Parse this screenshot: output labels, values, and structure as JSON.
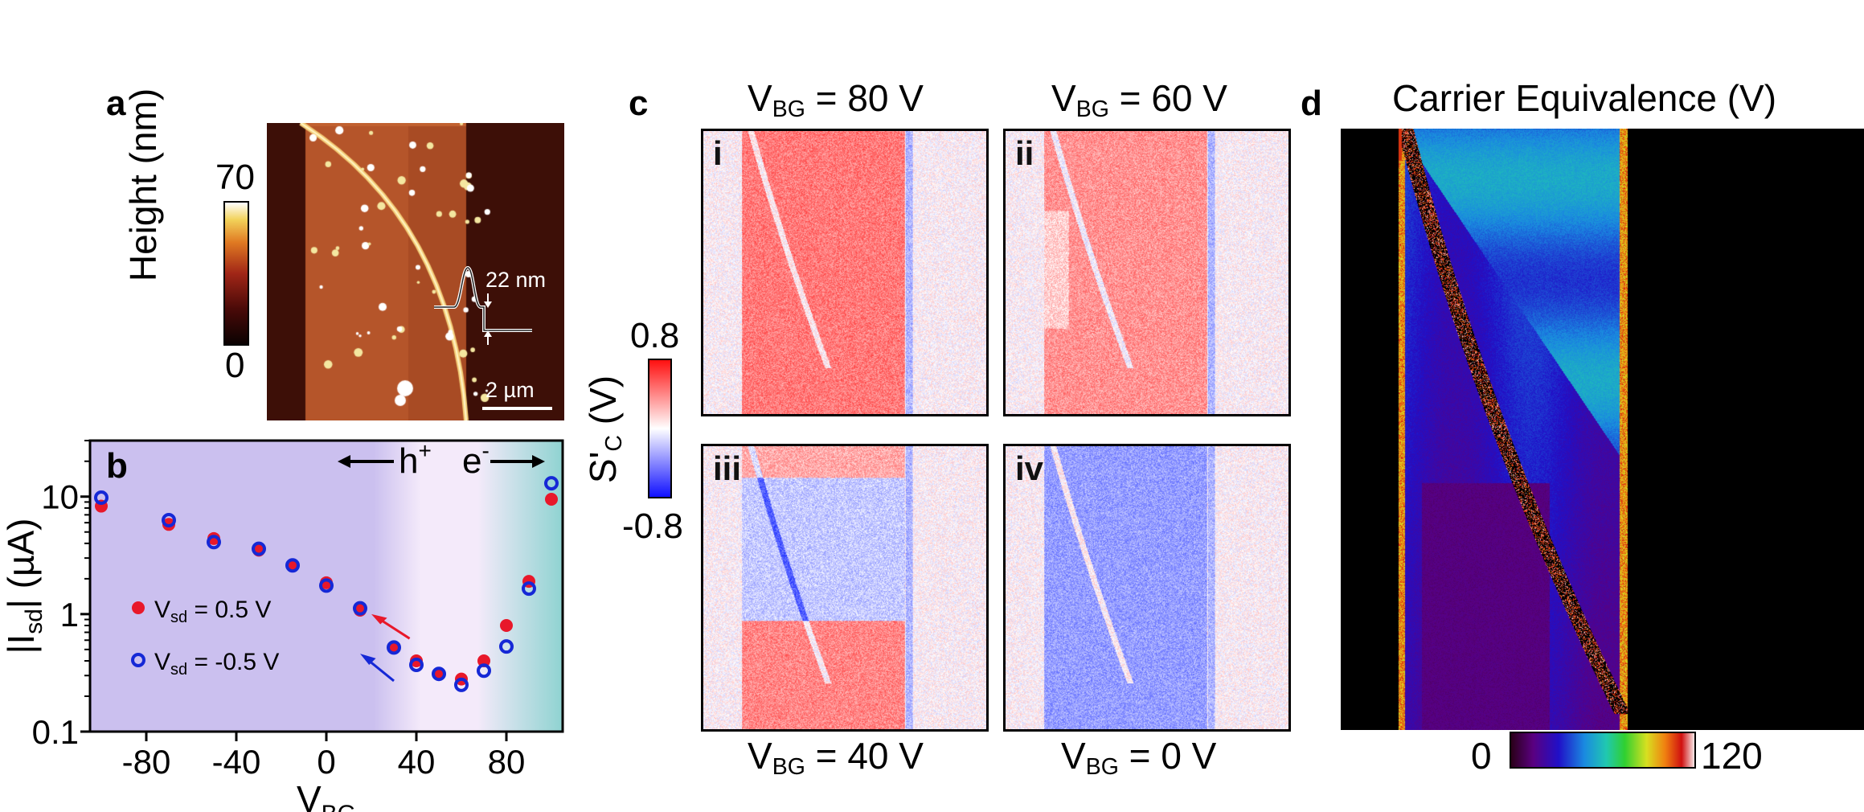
{
  "panel_a": {
    "letter": "a",
    "colorbar_label": "Height (nm)",
    "colorbar_max": "70",
    "colorbar_min": "0",
    "profile_label": "22 nm",
    "scale_label": "2 µm",
    "colors": {
      "low": "#1a0505",
      "mid": "#b8321a",
      "high": "#f0d060",
      "top": "#ffffff",
      "substrate": "#3a0d06",
      "flake": "#b8562a"
    }
  },
  "panel_b": {
    "letter": "b",
    "ylabel_main": "|I",
    "ylabel_sub": "sd",
    "ylabel_end": "| (µA)",
    "xlabel_main": "V",
    "xlabel_sub": "BG",
    "hole_label": "h",
    "hole_sup": "+",
    "electron_label": "e",
    "electron_sup": "-",
    "legend": [
      {
        "main": "V",
        "sub": "sd",
        "rest": " = 0.5 V"
      },
      {
        "main": "V",
        "sub": "sd",
        "rest": " = -0.5 V"
      }
    ],
    "colors": {
      "hole_region": "#cbc0ef",
      "mid_region": "#f4eafa",
      "electron_region": "#8fd3d1",
      "series1": "#e8182a",
      "series2": "#1528d6"
    }
  },
  "chart_data": {
    "type": "scatter",
    "xlabel": "VBG",
    "ylabel": "|Isd| (µA)",
    "xlim": [
      -105,
      105
    ],
    "ylim": [
      0.1,
      30
    ],
    "yscale": "log",
    "xticks": [
      -80,
      -40,
      0,
      40,
      80
    ],
    "xtick_labels": [
      "-80",
      "-40",
      "0",
      "40",
      "80"
    ],
    "yticks": [
      0.1,
      1,
      10
    ],
    "ytick_labels": [
      "0.1",
      "1",
      "10"
    ],
    "series": [
      {
        "name": "Vsd = 0.5 V",
        "marker": "filled-circle",
        "x": [
          -100,
          -70,
          -50,
          -30,
          -15,
          0,
          15,
          30,
          40,
          50,
          60,
          70,
          80,
          90,
          100
        ],
        "y": [
          8.3,
          5.8,
          4.4,
          3.5,
          2.6,
          1.85,
          1.08,
          0.52,
          0.4,
          0.31,
          0.28,
          0.4,
          0.8,
          1.9,
          9.5
        ]
      },
      {
        "name": "Vsd = -0.5 V",
        "marker": "open-circle",
        "x": [
          -100,
          -70,
          -50,
          -30,
          -15,
          0,
          15,
          30,
          40,
          50,
          60,
          70,
          80,
          90,
          100
        ],
        "y": [
          9.8,
          6.3,
          4.1,
          3.6,
          2.6,
          1.75,
          1.12,
          0.52,
          0.37,
          0.31,
          0.25,
          0.33,
          0.53,
          1.65,
          13.0
        ]
      }
    ]
  },
  "panel_c": {
    "letter": "c",
    "colorbar_label_main": "S'",
    "colorbar_label_sub": "C",
    "colorbar_label_end": " (V)",
    "colorbar_max": "0.8",
    "colorbar_min": "-0.8",
    "maps": [
      {
        "roman": "i",
        "title_main": "V",
        "title_sub": "BG",
        "title_rest": " = 80 V",
        "level": 0.55
      },
      {
        "roman": "ii",
        "title_main": "V",
        "title_sub": "BG",
        "title_rest": " = 60 V",
        "level": 0.45
      },
      {
        "roman": "iii",
        "title_main": "V",
        "title_sub": "BG",
        "title_rest": " = 40 V",
        "level": 0.1
      },
      {
        "roman": "iv",
        "title_main": "V",
        "title_sub": "BG",
        "title_rest": " = 0 V",
        "level": -0.45
      }
    ],
    "colors": {
      "positive": "#e8242a",
      "negative": "#2a3ae8",
      "neutral": "#ffffff"
    }
  },
  "panel_d": {
    "letter": "d",
    "title": "Carrier Equivalence (V)",
    "colorbar_min": "0",
    "colorbar_max": "120",
    "colors": {
      "background": "#000000"
    }
  }
}
